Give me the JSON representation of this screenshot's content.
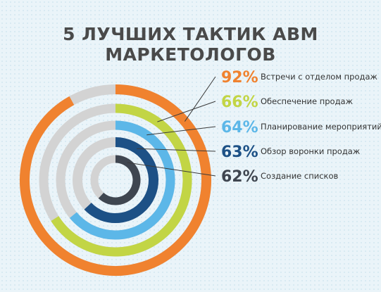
{
  "chart_data": {
    "type": "radial-bar",
    "title": "5 ЛУЧШИХ ТАКТИК ABM МАРКЕТОЛОГОВ",
    "unit": "%",
    "track_color": "#d3d3d3",
    "series": [
      {
        "label": "Встречи с отделом продаж",
        "value": 92,
        "display": "92%",
        "color": "#f0822f"
      },
      {
        "label": "Обеспечение продаж",
        "value": 66,
        "display": "66%",
        "color": "#c2d545"
      },
      {
        "label": "Планирование мероприятий",
        "value": 64,
        "display": "64%",
        "color": "#5cb7e8"
      },
      {
        "label": "Обзор воронки продаж",
        "value": 63,
        "display": "63%",
        "color": "#1d5186"
      },
      {
        "label": "Создание списков",
        "value": 62,
        "display": "62%",
        "color": "#3f4650"
      }
    ]
  }
}
